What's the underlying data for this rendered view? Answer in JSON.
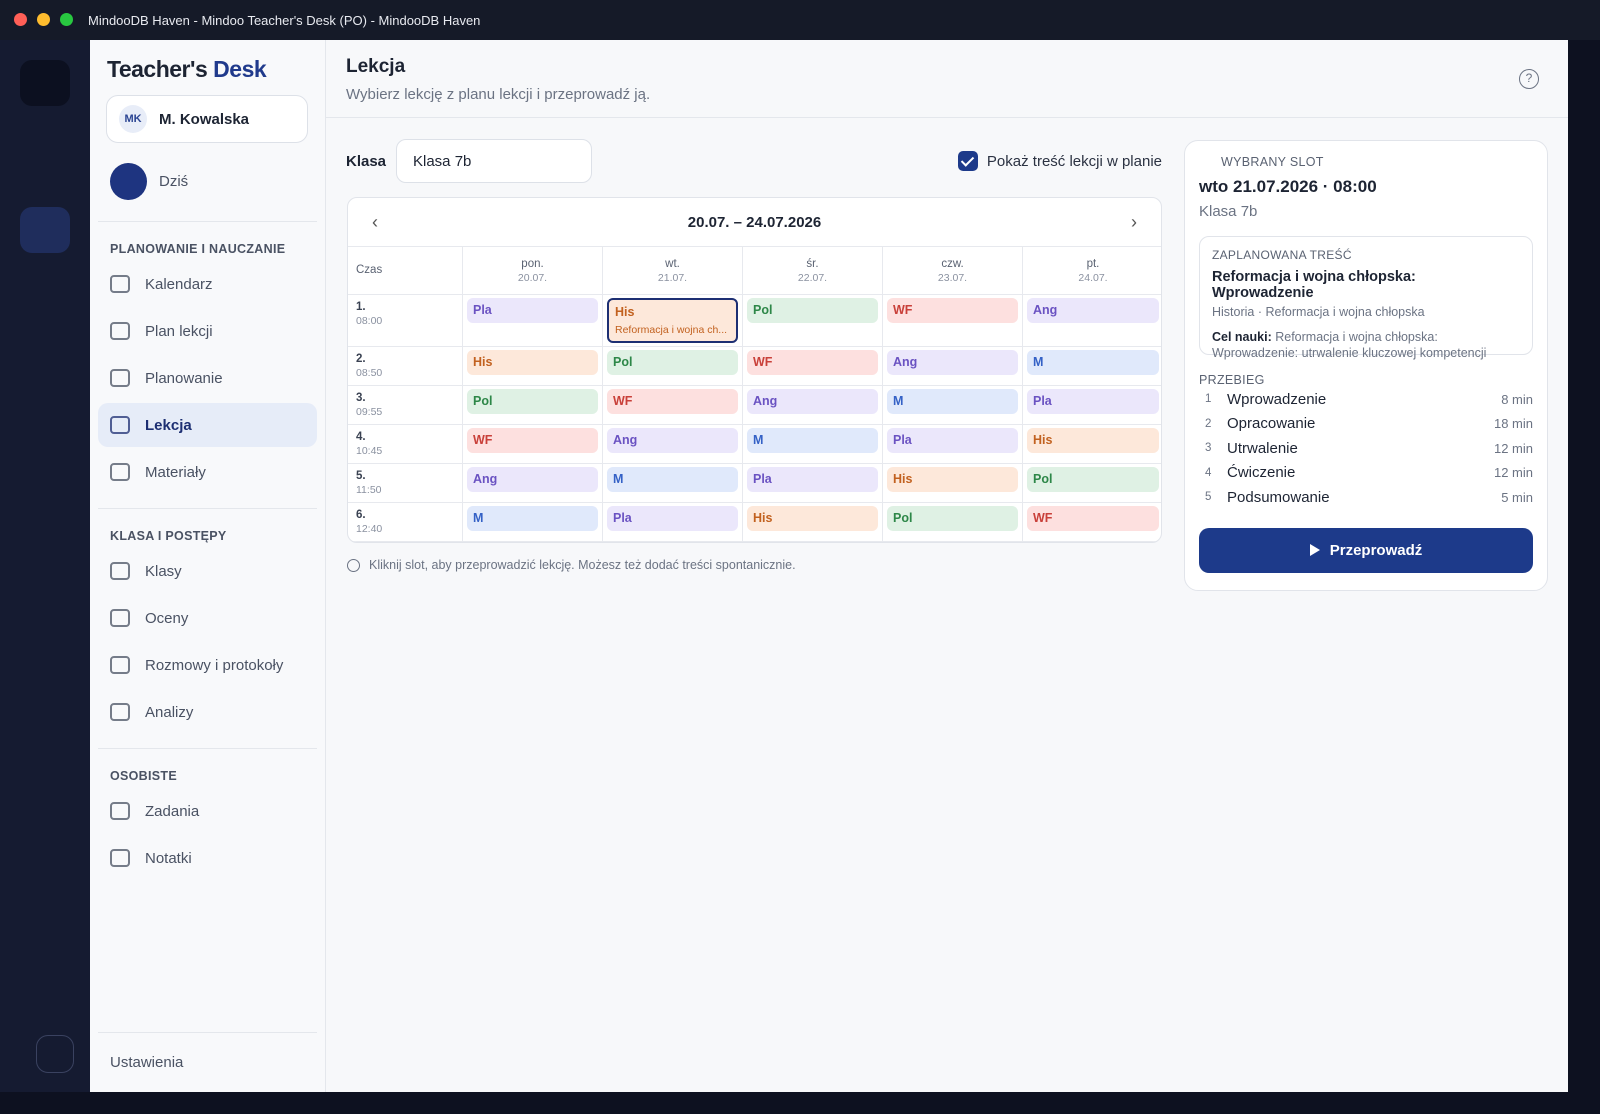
{
  "window": {
    "title": "MindooDB Haven - Mindoo Teacher's Desk (PO) - MindooDB Haven"
  },
  "sidebar": {
    "brand": {
      "first": "Teacher's",
      "second": "Desk"
    },
    "user": {
      "initials": "MK",
      "name": "M. Kowalska"
    },
    "today": "Dziś",
    "sections": [
      {
        "title": "PLANOWANIE I NAUCZANIE",
        "items": [
          "Kalendarz",
          "Plan lekcji",
          "Planowanie",
          "Lekcja",
          "Materiały"
        ]
      },
      {
        "title": "KLASA I POSTĘPY",
        "items": [
          "Klasy",
          "Oceny",
          "Rozmowy i protokoły",
          "Analizy"
        ]
      },
      {
        "title": "OSOBISTE",
        "items": [
          "Zadania",
          "Notatki"
        ]
      }
    ],
    "settings": "Ustawienia"
  },
  "header": {
    "title": "Lekcja",
    "subtitle": "Wybierz lekcję z planu lekcji i przeprowadź ją."
  },
  "controls": {
    "class_label": "Klasa",
    "class_value": "Klasa 7b",
    "show_content": "Pokaż treść lekcji w planie"
  },
  "calendar": {
    "range": "20.07. – 24.07.2026",
    "time_header": "Czas",
    "days": [
      {
        "name": "pon.",
        "date": "20.07."
      },
      {
        "name": "wt.",
        "date": "21.07."
      },
      {
        "name": "śr.",
        "date": "22.07."
      },
      {
        "name": "czw.",
        "date": "23.07."
      },
      {
        "name": "pt.",
        "date": "24.07."
      }
    ],
    "rows": [
      {
        "num": "1.",
        "time": "08:00",
        "cells": [
          {
            "text": "Pla",
            "tone": "violet"
          },
          {
            "text": "His",
            "tone": "orange",
            "note": "Reformacja i wojna ch...",
            "selected": true
          },
          {
            "text": "Pol",
            "tone": "green"
          },
          {
            "text": "WF",
            "tone": "red"
          },
          {
            "text": "Ang",
            "tone": "violet"
          }
        ]
      },
      {
        "num": "2.",
        "time": "08:50",
        "cells": [
          {
            "text": "His",
            "tone": "orange"
          },
          {
            "text": "Pol",
            "tone": "green"
          },
          {
            "text": "WF",
            "tone": "red"
          },
          {
            "text": "Ang",
            "tone": "violet"
          },
          {
            "text": "M",
            "tone": "blue"
          }
        ]
      },
      {
        "num": "3.",
        "time": "09:55",
        "cells": [
          {
            "text": "Pol",
            "tone": "green"
          },
          {
            "text": "WF",
            "tone": "red"
          },
          {
            "text": "Ang",
            "tone": "violet"
          },
          {
            "text": "M",
            "tone": "blue"
          },
          {
            "text": "Pla",
            "tone": "violet"
          }
        ]
      },
      {
        "num": "4.",
        "time": "10:45",
        "cells": [
          {
            "text": "WF",
            "tone": "red"
          },
          {
            "text": "Ang",
            "tone": "violet"
          },
          {
            "text": "M",
            "tone": "blue"
          },
          {
            "text": "Pla",
            "tone": "violet"
          },
          {
            "text": "His",
            "tone": "orange"
          }
        ]
      },
      {
        "num": "5.",
        "time": "11:50",
        "cells": [
          {
            "text": "Ang",
            "tone": "violet"
          },
          {
            "text": "M",
            "tone": "blue"
          },
          {
            "text": "Pla",
            "tone": "violet"
          },
          {
            "text": "His",
            "tone": "orange"
          },
          {
            "text": "Pol",
            "tone": "green"
          }
        ]
      },
      {
        "num": "6.",
        "time": "12:40",
        "cells": [
          {
            "text": "M",
            "tone": "blue"
          },
          {
            "text": "Pla",
            "tone": "violet"
          },
          {
            "text": "His",
            "tone": "orange"
          },
          {
            "text": "Pol",
            "tone": "green"
          },
          {
            "text": "WF",
            "tone": "red"
          }
        ]
      }
    ],
    "hint": "Kliknij slot, aby przeprowadzić lekcję. Możesz też dodać treści spontanicznie."
  },
  "panel": {
    "label": "WYBRANY SLOT",
    "slot": "wto 21.07.2026 · 08:00",
    "class": "Klasa 7b",
    "planned": {
      "label": "ZAPLANOWANA TREŚĆ",
      "title": "Reformacja i wojna chłopska: Wprowadzenie",
      "meta": "Historia · Reformacja i wojna chłopska",
      "goal_label": "Cel nauki:",
      "goal": "Reformacja i wojna chłopska: Wprowadzenie: utrwalenie kluczowej kompetencji"
    },
    "flow": {
      "label": "PRZEBIEG",
      "steps": [
        {
          "n": "1",
          "name": "Wprowadzenie",
          "duration": "8 min"
        },
        {
          "n": "2",
          "name": "Opracowanie",
          "duration": "18 min"
        },
        {
          "n": "3",
          "name": "Utrwalenie",
          "duration": "12 min"
        },
        {
          "n": "4",
          "name": "Ćwiczenie",
          "duration": "12 min"
        },
        {
          "n": "5",
          "name": "Podsumowanie",
          "duration": "5 min"
        }
      ]
    },
    "button": "Przeprowadź"
  }
}
